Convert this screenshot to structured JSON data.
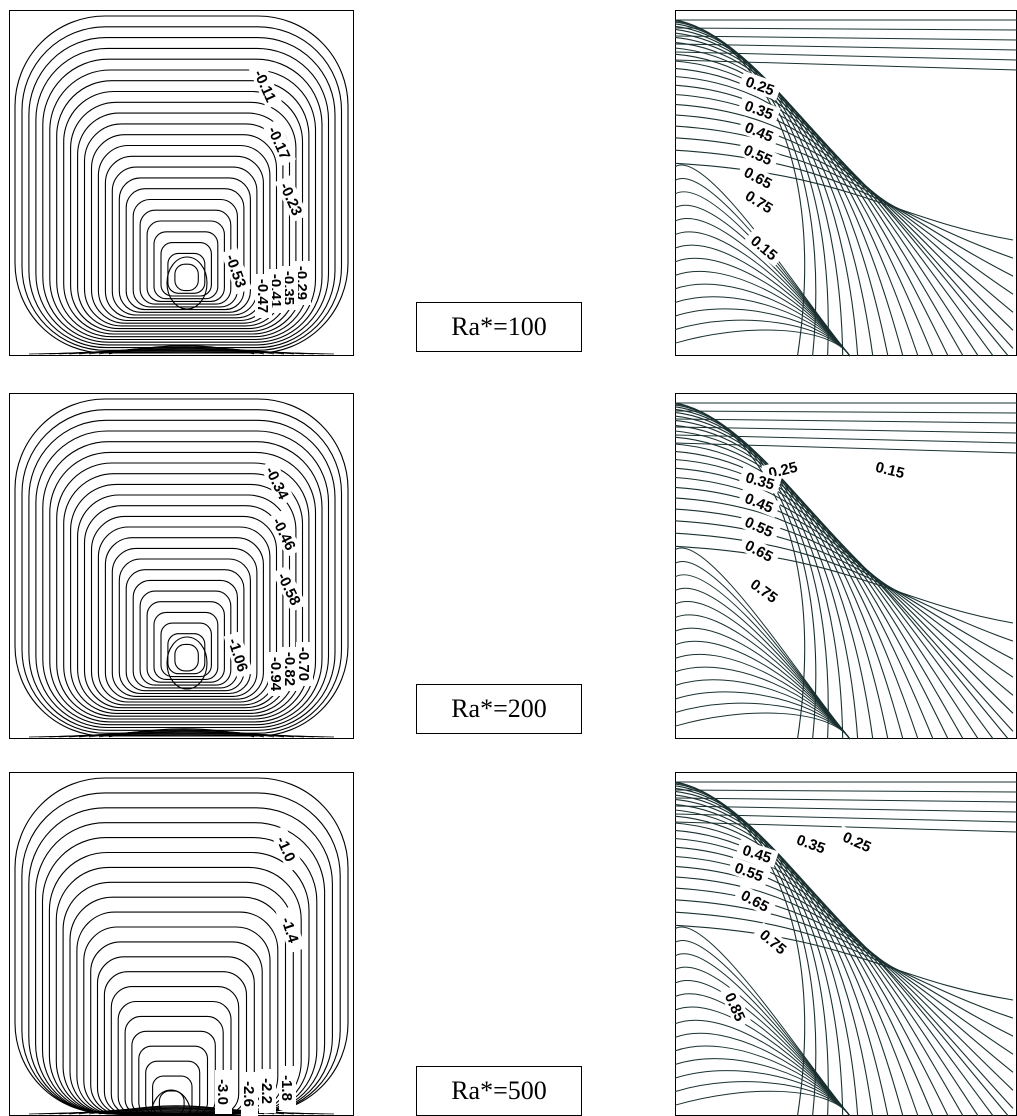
{
  "rows": [
    {
      "ra_label": "Ra*=100",
      "streamlines": {
        "levels": [
          "-0.11",
          "-0.17",
          "-0.23",
          "-0.29",
          "-0.35",
          "-0.41",
          "-0.47",
          "-0.53"
        ]
      },
      "isotherms": {
        "levels": [
          "0.15",
          "0.25",
          "0.35",
          "0.45",
          "0.55",
          "0.65",
          "0.75"
        ]
      }
    },
    {
      "ra_label": "Ra*=200",
      "streamlines": {
        "levels": [
          "-0.34",
          "-0.46",
          "-0.58",
          "-0.70",
          "-0.82",
          "-0.94",
          "-1.06"
        ]
      },
      "isotherms": {
        "levels": [
          "0.15",
          "0.25",
          "0.35",
          "0.45",
          "0.55",
          "0.65",
          "0.75"
        ]
      }
    },
    {
      "ra_label": "Ra*=500",
      "streamlines": {
        "levels": [
          "-1.0",
          "-1.4",
          "-1.8",
          "-2.2",
          "-2.6",
          "-3.0"
        ]
      },
      "isotherms": {
        "levels": [
          "0.25",
          "0.35",
          "0.45",
          "0.55",
          "0.65",
          "0.75",
          "0.85"
        ]
      }
    }
  ],
  "colors": {
    "line": "#000000",
    "isotherm_line": "#1a3030"
  }
}
